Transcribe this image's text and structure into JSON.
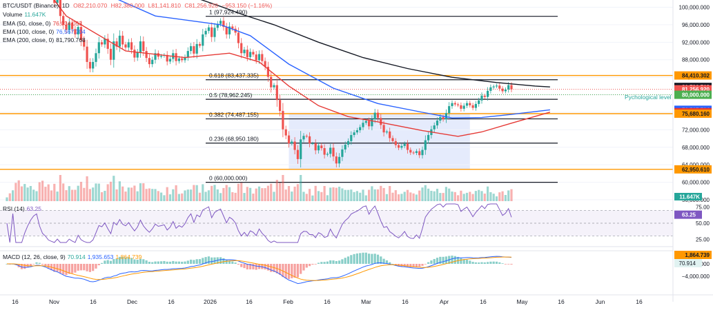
{
  "header": {
    "symbol": "BTC/USDT (Binance), 1D",
    "o_label": "O",
    "o_value": "82,210.070",
    "h_label": "H",
    "h_value": "82,380.000",
    "l_label": "L",
    "l_value": "81,141.810",
    "c_label": "C",
    "c_value": "81,256.920",
    "change": "−953.150 (−1.16%)"
  },
  "legends": {
    "volume": {
      "label": "Volume",
      "value": "11.647K",
      "color": "#26a69a"
    },
    "ema50": {
      "label": "EMA (50, close, 0)",
      "value": "76,034.053",
      "color": "#e53935"
    },
    "ema100": {
      "label": "EMA (100, close, 0)",
      "value": "76,567.704",
      "color": "#2962ff"
    },
    "ema200": {
      "label": "EMA (200, close, 0)",
      "value": "81,790.768",
      "color": "#131722"
    },
    "rsi": {
      "label": "RSI (14)",
      "value": "63.25",
      "color": "#7e57c2"
    },
    "macd": {
      "label": "MACD (12, 26, close, 9)",
      "v1": "70.914",
      "v2": "1,935.653",
      "v3": "1,864.739"
    }
  },
  "colors": {
    "up": "#26a69a",
    "down": "#ef5350",
    "ema50": "#e53935",
    "ema100": "#2962ff",
    "ema200": "#131722",
    "fib": "#131722",
    "hline": "#ff9800",
    "zone": "#dfe6fb",
    "rsi": "#7e57c2",
    "macd": "#2962ff",
    "signal": "#ff9800"
  },
  "chart_data": {
    "type": "candlestick",
    "price_axis": {
      "ticks": [
        "100,000.000",
        "96,000.000",
        "92,000.000",
        "88,000.000",
        "84,000.000",
        "80,000.000",
        "76,000.000",
        "72,000.000",
        "68,000.000",
        "64,000.000",
        "60,000.000",
        "56,000.000"
      ],
      "range": [
        56000,
        101500
      ]
    },
    "x_axis": {
      "ticks": [
        "16",
        "Nov",
        "16",
        "Dec",
        "16",
        "2026",
        "16",
        "Feb",
        "16",
        "Mar",
        "16",
        "Apr",
        "16",
        "May",
        "16",
        "Jun",
        "16"
      ]
    },
    "fib_levels": [
      {
        "label": "1 (97,924.490)",
        "value": 97924.49
      },
      {
        "label": "0.618 (83,437.335)",
        "value": 83437.335
      },
      {
        "label": "0.5 (78,962.245)",
        "value": 78962.245
      },
      {
        "label": "0.382 (74,487.155)",
        "value": 74487.155
      },
      {
        "label": "0.236 (68,950.180)",
        "value": 68950.18
      },
      {
        "label": "0 (60,000.000)",
        "value": 60000
      }
    ],
    "horizontal_lines": [
      {
        "value": 84410.302,
        "label": "84,410.302"
      },
      {
        "value": 75680.16,
        "label": "75,680.160"
      },
      {
        "value": 62950.61,
        "label": "62,950.610"
      }
    ],
    "annotation": "Pychological level",
    "psych_level": 80000,
    "range_zone": {
      "start_day": 95,
      "end_day": 156,
      "low": 62950.61,
      "high": 75680.16
    },
    "price_labels": [
      {
        "value": 84410.302,
        "text": "84,410.302",
        "bg": "#ff9800",
        "fg": "#131722"
      },
      {
        "value": 81790.768,
        "text": "81,790.768",
        "bg": "#131722",
        "fg": "#ffffff"
      },
      {
        "value": 81256.92,
        "text": "81,256.920",
        "bg": "#ef5350",
        "fg": "#ffffff"
      },
      {
        "value": 80000,
        "text": "80,000.000",
        "bg": "#4caf50",
        "fg": "#ffffff"
      },
      {
        "value": 76567.704,
        "text": "76,567.704",
        "bg": "#2962ff",
        "fg": "#ffffff"
      },
      {
        "value": 76034.053,
        "text": "76,034.053",
        "bg": "#e53935",
        "fg": "#ffffff"
      },
      {
        "value": 75680.16,
        "text": "75,680.160",
        "bg": "#ff9800",
        "fg": "#131722"
      },
      {
        "value": 62950.61,
        "text": "62,950.610",
        "bg": "#ff9800",
        "fg": "#131722"
      }
    ],
    "volume_label": "11.647K",
    "ema_paths": {
      "ema200": [
        [
          0,
          116000
        ],
        [
          30,
          109000
        ],
        [
          60,
          103000
        ],
        [
          72,
          100200
        ],
        [
          80,
          98200
        ],
        [
          90,
          96000
        ],
        [
          105,
          92000
        ],
        [
          120,
          88500
        ],
        [
          135,
          86000
        ],
        [
          150,
          84000
        ],
        [
          165,
          82800
        ],
        [
          178,
          82000
        ],
        [
          183,
          81790
        ]
      ],
      "ema100": [
        [
          0,
          120000
        ],
        [
          30,
          104000
        ],
        [
          50,
          98000
        ],
        [
          72,
          96000
        ],
        [
          82,
          93500
        ],
        [
          95,
          87000
        ],
        [
          110,
          81500
        ],
        [
          125,
          78000
        ],
        [
          140,
          76000
        ],
        [
          150,
          74700
        ],
        [
          160,
          74800
        ],
        [
          170,
          75500
        ],
        [
          183,
          76567
        ]
      ],
      "ema50": [
        [
          0,
          116000
        ],
        [
          20,
          98000
        ],
        [
          40,
          90000
        ],
        [
          60,
          88500
        ],
        [
          75,
          89500
        ],
        [
          85,
          87500
        ],
        [
          95,
          82000
        ],
        [
          105,
          77500
        ],
        [
          115,
          75000
        ],
        [
          125,
          73800
        ],
        [
          140,
          71800
        ],
        [
          152,
          70500
        ],
        [
          160,
          71500
        ],
        [
          170,
          73500
        ],
        [
          183,
          76034
        ]
      ]
    },
    "closes": [
      113500,
      113000,
      113800,
      111000,
      108000,
      106500,
      109000,
      110500,
      112000,
      113300,
      114000,
      111000,
      108000,
      106500,
      104000,
      103000,
      101000,
      102000,
      98000,
      96000,
      94800,
      96500,
      95000,
      93800,
      95500,
      92500,
      91000,
      87500,
      86000,
      87500,
      89500,
      92000,
      91500,
      92800,
      90500,
      88000,
      92200,
      91000,
      93500,
      91500,
      90800,
      92000,
      90300,
      88500,
      89700,
      92200,
      90000,
      88400,
      87000,
      88000,
      89500,
      88700,
      88900,
      89100,
      87600,
      88200,
      89500,
      87700,
      88300,
      87900,
      88600,
      90000,
      91100,
      89400,
      91600,
      91200,
      93800,
      94600,
      95400,
      93200,
      95300,
      96200,
      96900,
      95500,
      93800,
      95600,
      95100,
      94200,
      91800,
      89500,
      90300,
      88600,
      89800,
      89200,
      87900,
      89300,
      87700,
      86400,
      84100,
      81700,
      82200,
      78800,
      76300,
      72100,
      70700,
      68900,
      69300,
      67400,
      65300,
      69800,
      70600,
      70500,
      68900,
      68900,
      67300,
      68400,
      67800,
      66300,
      66500,
      67900,
      65900,
      64300,
      65800,
      67500,
      68600,
      69400,
      70800,
      71400,
      71900,
      72600,
      73600,
      74000,
      72800,
      74400,
      75900,
      74700,
      73100,
      71400,
      71600,
      70100,
      69400,
      68500,
      67900,
      68300,
      68800,
      67400,
      66800,
      66700,
      67100,
      66200,
      67400,
      69600,
      70800,
      72100,
      73000,
      74100,
      74900,
      74400,
      75800,
      77400,
      78100,
      77800,
      77600,
      76800,
      77500,
      78100,
      77600,
      77000,
      77900,
      78700,
      79800,
      79500,
      80900,
      81700,
      81900,
      82100,
      81400,
      80800,
      81200,
      82200,
      81256
    ]
  }
}
